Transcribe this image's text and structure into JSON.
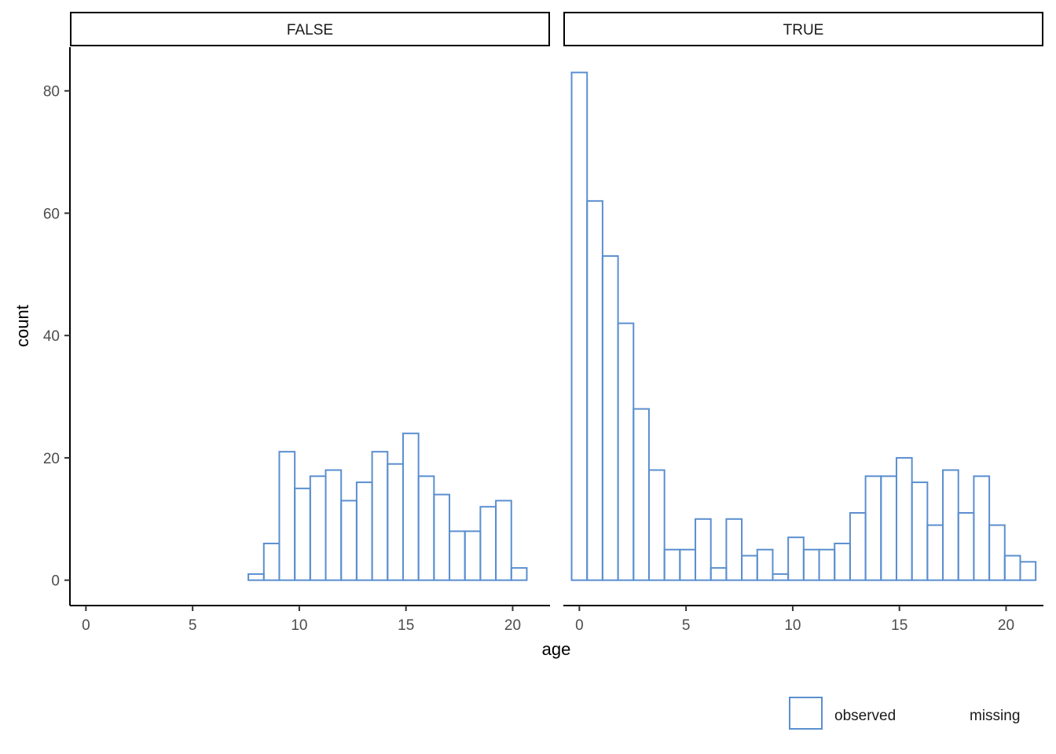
{
  "chart_data": {
    "type": "bar",
    "xlabel": "age",
    "ylabel": "count",
    "xlim": [
      -0.75,
      21.75
    ],
    "ylim": [
      -4.15,
      87.15
    ],
    "x_ticks": [
      0,
      5,
      10,
      15,
      20
    ],
    "y_ticks": [
      0,
      20,
      40,
      60,
      80
    ],
    "x_tick_labels": [
      "0",
      "5",
      "10",
      "15",
      "20"
    ],
    "y_tick_labels": [
      "0",
      "20",
      "40",
      "60",
      "80"
    ],
    "bin_width": 0.725,
    "bin_centers": [
      0,
      0.725,
      1.45,
      2.175,
      2.9,
      3.625,
      4.35,
      5.075,
      5.8,
      6.525,
      7.25,
      7.975,
      8.7,
      9.425,
      10.15,
      10.875,
      11.6,
      12.325,
      13.05,
      13.775,
      14.5,
      15.225,
      15.95,
      16.675,
      17.4,
      18.125,
      18.85,
      19.575,
      20.3,
      21.025
    ],
    "bar_color": "#5b8fcf",
    "panels": [
      {
        "strip": "FALSE",
        "values": [
          0,
          0,
          0,
          0,
          0,
          0,
          0,
          0,
          0,
          0,
          0,
          1,
          6,
          21,
          15,
          17,
          18,
          13,
          16,
          21,
          19,
          24,
          17,
          14,
          8,
          8,
          12,
          13,
          2,
          0
        ]
      },
      {
        "strip": "TRUE",
        "values": [
          83,
          62,
          53,
          42,
          28,
          18,
          5,
          5,
          10,
          2,
          10,
          4,
          5,
          1,
          7,
          5,
          5,
          6,
          11,
          17,
          17,
          20,
          16,
          9,
          18,
          11,
          17,
          9,
          4,
          3
        ]
      }
    ],
    "legend": {
      "position": "bottom-right",
      "items": [
        {
          "label": "observed",
          "color": "#5b8fcf",
          "shown_key": true
        },
        {
          "label": "missing",
          "color": "#5b8fcf",
          "shown_key": false
        }
      ]
    },
    "grid": false
  }
}
